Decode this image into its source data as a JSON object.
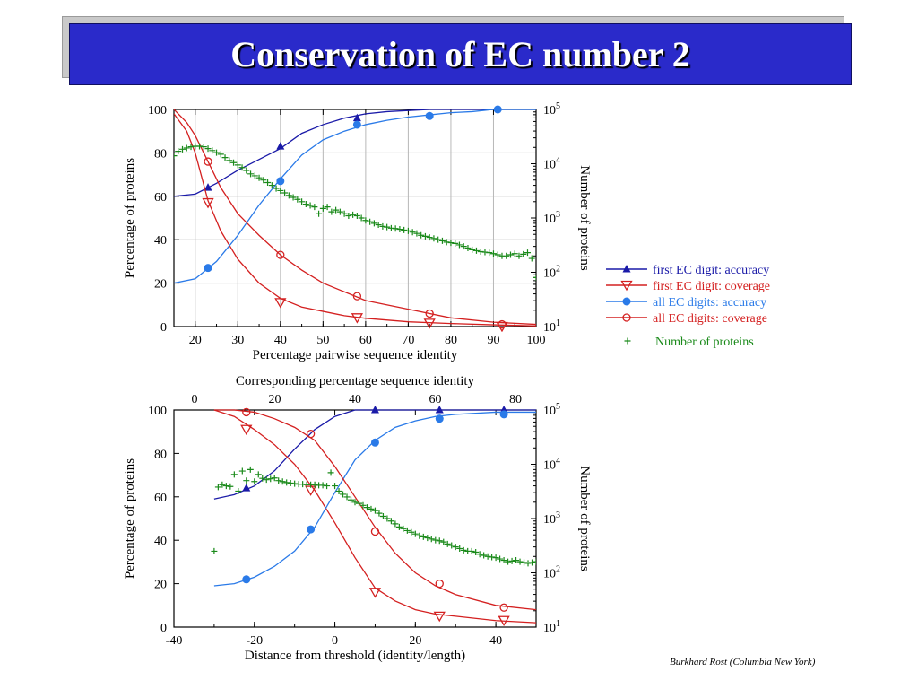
{
  "slide": {
    "title": "Conservation of EC number 2",
    "credit": "Burkhard Rost (Columbia New York)"
  },
  "legend": [
    {
      "label": "first EC digit: accuracy",
      "color": "#1a1aa8",
      "marker": "filled-triangle"
    },
    {
      "label": "first EC digit: coverage",
      "color": "#d42020",
      "marker": "open-triangle-down"
    },
    {
      "label": "all EC digits: accuracy",
      "color": "#2a7ae8",
      "marker": "filled-circle"
    },
    {
      "label": "all EC digits: coverage",
      "color": "#d42020",
      "marker": "open-circle"
    },
    {
      "label": "Number of proteins",
      "color": "#1a8a1a",
      "marker": "plus"
    }
  ],
  "chart_data": [
    {
      "type": "line",
      "xlabel": "Percentage pairwise sequence identity",
      "ylabel": "Percentage of proteins",
      "y2label": "Number of proteins",
      "xlim": [
        15,
        100
      ],
      "ylim": [
        0,
        100
      ],
      "y2lim": [
        10,
        100000
      ],
      "y2scale": "log",
      "xticks": [
        "20",
        "30",
        "40",
        "50",
        "60",
        "70",
        "80",
        "90",
        "100"
      ],
      "yticks": [
        "0",
        "20",
        "40",
        "60",
        "80",
        "100"
      ],
      "grid": true,
      "series": [
        {
          "name": "first EC digit: accuracy",
          "color": "#1a1aa8",
          "marker": "filled-triangle",
          "x": [
            15,
            20,
            25,
            30,
            35,
            40,
            45,
            50,
            55,
            60,
            65,
            70,
            75,
            80,
            90,
            100
          ],
          "y": [
            60,
            61,
            66,
            72,
            77,
            82,
            89,
            93,
            96,
            98,
            99,
            99.5,
            100,
            100,
            100,
            100
          ],
          "markers_x": [
            23,
            40,
            58
          ],
          "markers_y": [
            64,
            83,
            96
          ]
        },
        {
          "name": "first EC digit: coverage",
          "color": "#d42020",
          "marker": "open-triangle-down",
          "x": [
            15,
            18,
            20,
            23,
            26,
            30,
            35,
            40,
            45,
            50,
            55,
            60,
            70,
            80,
            90,
            100
          ],
          "y": [
            98,
            90,
            80,
            58,
            44,
            31,
            20,
            13,
            9,
            7,
            5,
            3.8,
            2.2,
            1.4,
            0.8,
            0.3
          ],
          "markers_x": [
            23,
            40,
            58,
            75,
            92
          ],
          "markers_y": [
            57,
            11,
            4,
            1.5,
            0
          ]
        },
        {
          "name": "all EC digits: accuracy",
          "color": "#2a7ae8",
          "marker": "filled-circle",
          "x": [
            15,
            20,
            25,
            30,
            35,
            40,
            45,
            50,
            55,
            60,
            65,
            70,
            75,
            80,
            85,
            90,
            100
          ],
          "y": [
            20,
            22,
            30,
            42,
            56,
            68,
            79,
            86,
            90,
            93,
            95,
            96.5,
            97.5,
            98.5,
            99,
            100,
            100
          ],
          "markers_x": [
            23,
            40,
            58,
            75,
            91
          ],
          "markers_y": [
            27,
            67,
            93,
            97,
            100
          ]
        },
        {
          "name": "all EC digits: coverage",
          "color": "#d42020",
          "marker": "open-circle",
          "x": [
            15,
            18,
            20,
            23,
            26,
            30,
            35,
            40,
            45,
            50,
            55,
            60,
            70,
            80,
            90,
            100
          ],
          "y": [
            100,
            94,
            88,
            76,
            64,
            52,
            42,
            33,
            26,
            20,
            16,
            12,
            8,
            4,
            2,
            1
          ],
          "markers_x": [
            23,
            40,
            58,
            75,
            92
          ],
          "markers_y": [
            76,
            33,
            14,
            6,
            1
          ]
        },
        {
          "name": "Number of proteins",
          "color": "#1a8a1a",
          "marker": "plus",
          "axis": "right",
          "x": [
            15,
            16,
            17,
            18,
            19,
            20,
            21,
            22,
            23,
            24,
            25,
            26,
            27,
            28,
            29,
            30,
            31,
            32,
            33,
            34,
            35,
            36,
            37,
            38,
            39,
            40,
            41,
            42,
            43,
            44,
            45,
            46,
            47,
            48,
            49,
            50,
            51,
            52,
            53,
            54,
            55,
            56,
            57,
            58,
            59,
            60,
            61,
            62,
            63,
            64,
            65,
            66,
            67,
            68,
            69,
            70,
            71,
            72,
            73,
            74,
            75,
            76,
            77,
            78,
            79,
            80,
            81,
            82,
            83,
            84,
            85,
            86,
            87,
            88,
            89,
            90,
            91,
            92,
            93,
            94,
            95,
            96,
            97,
            98,
            99,
            100
          ],
          "y": [
            14000,
            17000,
            18500,
            19500,
            20500,
            21000,
            21000,
            20500,
            19000,
            17500,
            16000,
            15000,
            13000,
            11500,
            10500,
            9500,
            8500,
            7500,
            6500,
            6000,
            5500,
            5000,
            4500,
            4000,
            3500,
            3200,
            2900,
            2600,
            2400,
            2200,
            2000,
            1800,
            1700,
            1600,
            1200,
            1500,
            1600,
            1300,
            1400,
            1300,
            1200,
            1100,
            1150,
            1100,
            1000,
            900,
            850,
            800,
            750,
            700,
            680,
            650,
            640,
            620,
            600,
            580,
            550,
            520,
            480,
            460,
            440,
            420,
            400,
            380,
            360,
            350,
            340,
            320,
            300,
            280,
            260,
            250,
            240,
            235,
            230,
            220,
            210,
            200,
            200,
            210,
            220,
            200,
            215,
            230,
            180,
            80
          ]
        }
      ]
    },
    {
      "type": "line",
      "xlabel": "Distance from threshold (identity/length)",
      "x2label": "Corresponding percentage sequence identity",
      "ylabel": "Percentage of proteins",
      "y2label": "Number of proteins",
      "xlim": [
        -40,
        50
      ],
      "ylim": [
        0,
        100
      ],
      "y2lim": [
        10,
        100000
      ],
      "y2scale": "log",
      "xticks": [
        "-40",
        "-20",
        "0",
        "20",
        "40"
      ],
      "x2ticks": [
        "0",
        "20",
        "40",
        "60",
        "80"
      ],
      "yticks": [
        "0",
        "20",
        "40",
        "60",
        "80",
        "100"
      ],
      "grid": false,
      "series": [
        {
          "name": "first EC digit: accuracy",
          "color": "#1a1aa8",
          "marker": "filled-triangle",
          "x": [
            -30,
            -25,
            -20,
            -15,
            -10,
            -5,
            0,
            5,
            10,
            20,
            30,
            40,
            50
          ],
          "y": [
            59,
            61,
            65,
            72,
            82,
            91,
            97,
            100,
            100,
            100,
            100,
            100,
            100
          ],
          "markers_x": [
            -22,
            10,
            26,
            42
          ],
          "markers_y": [
            64,
            100,
            100,
            100
          ]
        },
        {
          "name": "first EC digit: coverage",
          "color": "#d42020",
          "marker": "open-triangle-down",
          "x": [
            -30,
            -25,
            -20,
            -15,
            -10,
            -5,
            0,
            5,
            10,
            15,
            20,
            25,
            30,
            40,
            50
          ],
          "y": [
            100,
            97,
            91,
            84,
            75,
            63,
            48,
            32,
            18,
            12,
            8,
            6,
            5,
            3,
            2
          ],
          "markers_x": [
            -22,
            -6,
            10,
            26,
            42
          ],
          "markers_y": [
            91,
            63,
            16,
            5,
            3
          ]
        },
        {
          "name": "all EC digits: accuracy",
          "color": "#2a7ae8",
          "marker": "filled-circle",
          "x": [
            -30,
            -25,
            -20,
            -15,
            -10,
            -5,
            0,
            5,
            10,
            15,
            20,
            25,
            30,
            40,
            50
          ],
          "y": [
            19,
            20,
            23,
            28,
            35,
            46,
            62,
            77,
            86,
            92,
            95,
            97,
            98,
            99,
            99
          ],
          "markers_x": [
            -22,
            -6,
            10,
            26,
            42
          ],
          "markers_y": [
            22,
            45,
            85,
            96,
            98
          ]
        },
        {
          "name": "all EC digits: coverage",
          "color": "#d42020",
          "marker": "open-circle",
          "x": [
            -30,
            -25,
            -20,
            -15,
            -10,
            -5,
            0,
            5,
            10,
            15,
            20,
            25,
            30,
            40,
            50
          ],
          "y": [
            100,
            100,
            99,
            96,
            92,
            86,
            74,
            60,
            46,
            34,
            25,
            19,
            15,
            10,
            8
          ],
          "markers_x": [
            -22,
            -6,
            10,
            26,
            42
          ],
          "markers_y": [
            99,
            89,
            44,
            20,
            9
          ]
        },
        {
          "name": "Number of proteins",
          "color": "#1a8a1a",
          "marker": "plus",
          "axis": "right",
          "x": [
            -30,
            -29,
            -28,
            -27,
            -26,
            -25,
            -24,
            -23,
            -22,
            -21,
            -20,
            -19,
            -18,
            -17,
            -16,
            -15,
            -14,
            -13,
            -12,
            -11,
            -10,
            -9,
            -8,
            -7,
            -6,
            -5,
            -4,
            -3,
            -2,
            -1,
            0,
            1,
            2,
            3,
            4,
            5,
            6,
            7,
            8,
            9,
            10,
            11,
            12,
            13,
            14,
            15,
            16,
            17,
            18,
            19,
            20,
            21,
            22,
            23,
            24,
            25,
            26,
            27,
            28,
            29,
            30,
            31,
            32,
            33,
            34,
            35,
            36,
            37,
            38,
            39,
            40,
            41,
            42,
            43,
            44,
            45,
            46,
            47,
            48,
            49,
            50
          ],
          "y": [
            250,
            3800,
            4200,
            4000,
            3900,
            6500,
            3200,
            7500,
            5000,
            8000,
            4800,
            6500,
            5500,
            5200,
            5400,
            5600,
            5000,
            4800,
            4600,
            4500,
            4400,
            4300,
            4300,
            4200,
            4200,
            4200,
            4100,
            4100,
            4000,
            7000,
            4000,
            3200,
            2800,
            2500,
            2200,
            2000,
            1900,
            1750,
            1600,
            1500,
            1400,
            1250,
            1100,
            1000,
            900,
            800,
            700,
            650,
            600,
            560,
            520,
            480,
            460,
            440,
            420,
            400,
            390,
            370,
            340,
            320,
            300,
            280,
            260,
            250,
            250,
            240,
            220,
            210,
            200,
            195,
            190,
            180,
            170,
            160,
            165,
            170,
            160,
            155,
            150,
            155,
            160
          ]
        }
      ]
    }
  ]
}
